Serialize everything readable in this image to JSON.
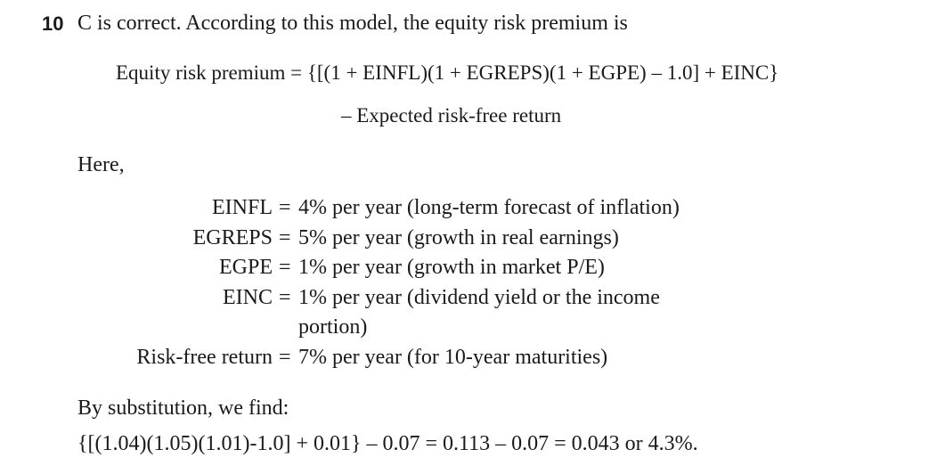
{
  "question": {
    "number": "10",
    "lead": "C is correct. According to this model, the equity risk premium is"
  },
  "formula": {
    "line1": "Equity risk premium = {[(1 + EINFL)(1 + EGREPS)(1 + EGPE) – 1.0] + EINC}",
    "line2": "– Expected risk-free return"
  },
  "here": "Here,",
  "definitions": [
    {
      "term": "EINFL",
      "sign": "=",
      "lines": [
        "4% per year (long-term forecast of inflation)"
      ]
    },
    {
      "term": "EGREPS",
      "sign": "=",
      "lines": [
        "5% per year (growth in real earnings)"
      ]
    },
    {
      "term": "EGPE",
      "sign": "=",
      "lines": [
        "1% per year (growth in market P/E)"
      ]
    },
    {
      "term": "EINC",
      "sign": "=",
      "lines": [
        "1% per year (dividend yield or the income",
        "portion)"
      ]
    },
    {
      "term": "Risk-free return",
      "sign": "=",
      "lines": [
        "7% per year (for 10-year maturities)"
      ]
    }
  ],
  "substitution": {
    "intro": "By substitution, we find:",
    "result": "{[(1.04)(1.05)(1.01)-1.0] + 0.01} – 0.07 = 0.113 – 0.07 = 0.043 or 4.3%."
  }
}
